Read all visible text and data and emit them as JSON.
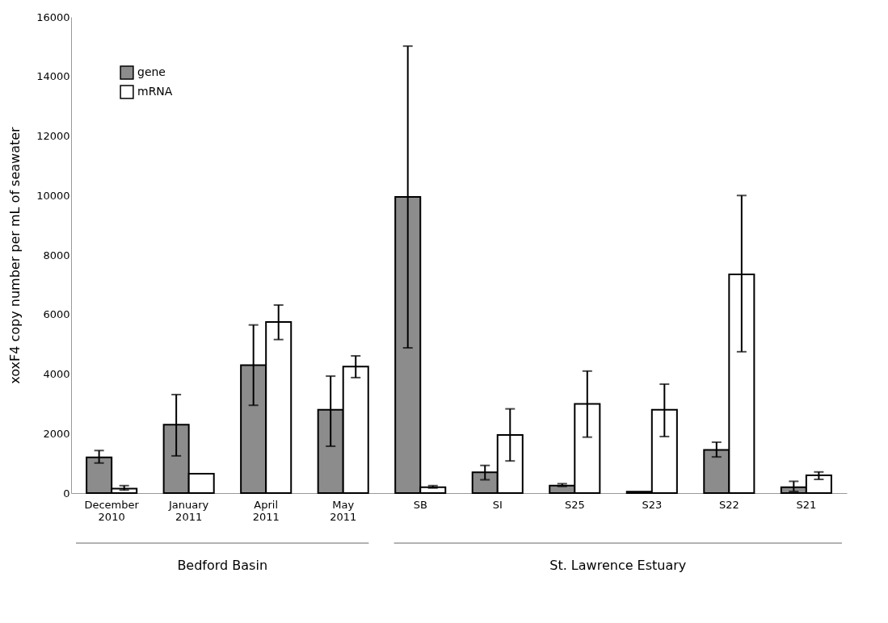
{
  "chart_data": {
    "type": "bar",
    "ylabel": "xoxF4  copy number per mL of seawater",
    "categories": [
      "December 2010",
      "January 2011",
      "April 2011",
      "May 2011",
      "SB",
      "SI",
      "S25",
      "S23",
      "S22",
      "S21"
    ],
    "series": [
      {
        "name": "gene",
        "color": "#8c8c8c",
        "values": [
          1200,
          2300,
          4300,
          2800,
          9950,
          700,
          250,
          50,
          1450,
          200
        ],
        "errors": [
          [
            1010,
            1430
          ],
          [
            1250,
            3310
          ],
          [
            2950,
            5650
          ],
          [
            1575,
            3930
          ],
          [
            4880,
            15020
          ],
          [
            450,
            930
          ],
          [
            225,
            315
          ],
          null,
          [
            1215,
            1710
          ],
          [
            55,
            395
          ]
        ]
      },
      {
        "name": "mRNA",
        "color": "#ffffff",
        "values": [
          150,
          650,
          5750,
          4250,
          200,
          1950,
          3000,
          2800,
          7350,
          600
        ],
        "errors": [
          [
            100,
            250
          ],
          null,
          [
            5160,
            6320
          ],
          [
            3880,
            4610
          ],
          [
            170,
            250
          ],
          [
            1080,
            2830
          ],
          [
            1880,
            4100
          ],
          [
            1900,
            3660
          ],
          [
            4750,
            10000
          ],
          [
            460,
            710
          ]
        ]
      }
    ],
    "ylim": [
      0,
      16000
    ],
    "yticks": [
      0,
      2000,
      4000,
      6000,
      8000,
      10000,
      12000,
      14000,
      16000
    ],
    "grid": false,
    "legend": "top left",
    "annotations": [
      "Bedford Basin",
      "St. Lawrence Estuary"
    ]
  }
}
